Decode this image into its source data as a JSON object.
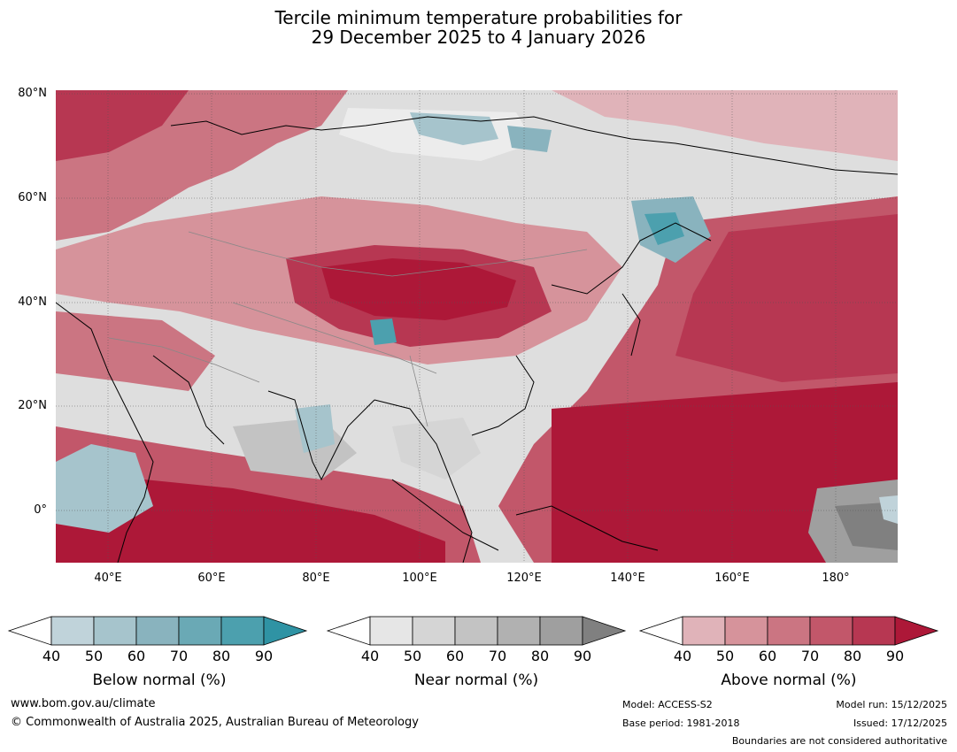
{
  "title": {
    "line1": "Tercile minimum temperature probabilities for",
    "line2": "29 December 2025 to 4 January 2026"
  },
  "map": {
    "lat_labels": [
      "80°N",
      "60°N",
      "40°N",
      "20°N",
      "0°"
    ],
    "lon_labels": [
      "40°E",
      "60°E",
      "80°E",
      "100°E",
      "120°E",
      "140°E",
      "160°E",
      "180°"
    ]
  },
  "legend": {
    "ticks": [
      "40",
      "50",
      "60",
      "70",
      "80",
      "90"
    ],
    "below": {
      "label": "Below normal (%)",
      "colors": [
        "#ffffff",
        "#c0d3da",
        "#a6c4cc",
        "#89b3be",
        "#6aa9b5",
        "#4ca0ae",
        "#2f93a4"
      ]
    },
    "near": {
      "label": "Near normal (%)",
      "colors": [
        "#ffffff",
        "#e6e6e6",
        "#d5d5d5",
        "#c3c3c3",
        "#b1b1b1",
        "#9f9f9f",
        "#808080"
      ]
    },
    "above": {
      "label": "Above normal (%)",
      "colors": [
        "#ffffff",
        "#e0b3b9",
        "#d6939b",
        "#cb7582",
        "#c2576a",
        "#b73752",
        "#ad1838"
      ]
    }
  },
  "footer": {
    "website": "www.bom.gov.au/climate",
    "copyright": "© Commonwealth of Australia 2025, Australian Bureau of Meteorology",
    "model": "Model: ACCESS-S2",
    "base_period": "Base period: 1981-2018",
    "model_run": "Model run: 15/12/2025",
    "issued": "Issued: 17/12/2025",
    "disclaimer": "Boundaries are not considered authoritative"
  }
}
